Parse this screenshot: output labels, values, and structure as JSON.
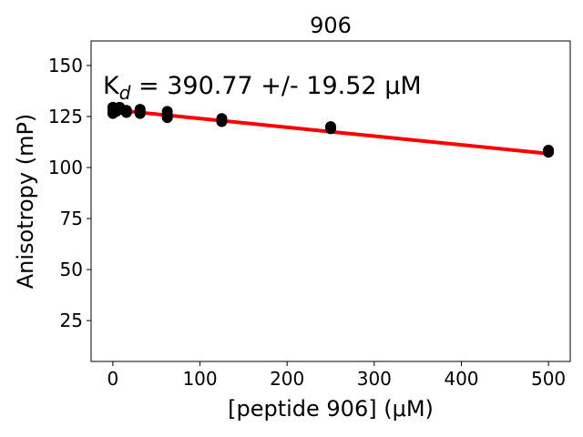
{
  "chart_data": {
    "type": "scatter",
    "title": "906",
    "xlabel": "[peptide 906] (μM)",
    "ylabel": "Anisotropy (mP)",
    "annotation": {
      "prefix": "K",
      "subscript": "d",
      "suffix": " = 390.77 +/- 19.52 μM"
    },
    "xlim": [
      -25,
      525
    ],
    "ylim": [
      5,
      162
    ],
    "xticks": [
      0,
      100,
      200,
      300,
      400,
      500
    ],
    "yticks": [
      25,
      50,
      75,
      100,
      125,
      150
    ],
    "grid": false,
    "series": [
      {
        "kind": "points",
        "color": "#000000",
        "points": [
          [
            0,
            126.5
          ],
          [
            0,
            128.5
          ],
          [
            0,
            129.5
          ],
          [
            3.9,
            127.5
          ],
          [
            3.9,
            128.5
          ],
          [
            7.8,
            128.5
          ],
          [
            7.8,
            129.5
          ],
          [
            15.6,
            127.0
          ],
          [
            15.6,
            128.0
          ],
          [
            31.25,
            126.5
          ],
          [
            31.25,
            127.5
          ],
          [
            31.25,
            128.5
          ],
          [
            62.5,
            124.5
          ],
          [
            62.5,
            126.0
          ],
          [
            62.5,
            127.5
          ],
          [
            125,
            122.5
          ],
          [
            125,
            124.0
          ],
          [
            250,
            119.0
          ],
          [
            250,
            120.0
          ],
          [
            500,
            107.5
          ],
          [
            500,
            108.5
          ]
        ]
      },
      {
        "kind": "fit",
        "color": "#ff0000",
        "x": [
          0,
          500
        ],
        "y": [
          128.3,
          106.8
        ]
      }
    ]
  }
}
